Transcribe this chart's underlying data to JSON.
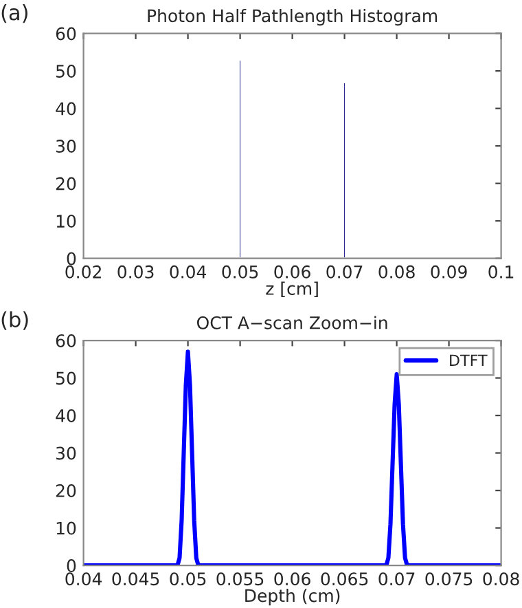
{
  "chart_data": [
    {
      "type": "bar",
      "title": "Photon Half Pathlength Histogram",
      "xlabel": "z [cm]",
      "annotations": [
        "(a)"
      ],
      "x": [
        0.05,
        0.07
      ],
      "series": [
        {
          "color": "#000080",
          "values": [
            53,
            47
          ]
        }
      ],
      "xlim": [
        0.02,
        0.1
      ],
      "xticks": [
        0.02,
        0.03,
        0.04,
        0.05,
        0.06,
        0.07,
        0.08,
        0.09,
        0.1
      ],
      "ylim": [
        0,
        60
      ],
      "yticks": [
        0,
        10,
        20,
        30,
        40,
        50,
        60
      ],
      "grid": false,
      "legend": false
    },
    {
      "type": "line",
      "title": "OCT A−scan Zoom−in",
      "xlabel": "Depth (cm)",
      "annotations": [
        "(b)"
      ],
      "series": [
        {
          "name": "DTFT",
          "color": "#0000ff",
          "x": [
            0.04,
            0.049,
            0.0492,
            0.0494,
            0.0496,
            0.0498,
            0.05,
            0.0502,
            0.0504,
            0.0506,
            0.0508,
            0.051,
            0.069,
            0.0692,
            0.0694,
            0.0696,
            0.0698,
            0.07,
            0.0702,
            0.0704,
            0.0706,
            0.0708,
            0.071,
            0.08
          ],
          "values": [
            0,
            0,
            2,
            12,
            30,
            48,
            57,
            48,
            30,
            12,
            2,
            0,
            0,
            2,
            11,
            27,
            43,
            51,
            43,
            27,
            11,
            2,
            0,
            0
          ]
        }
      ],
      "xlim": [
        0.04,
        0.08
      ],
      "xticks": [
        0.04,
        0.045,
        0.05,
        0.055,
        0.06,
        0.065,
        0.07,
        0.075,
        0.08
      ],
      "ylim": [
        0,
        60
      ],
      "yticks": [
        0,
        10,
        20,
        30,
        40,
        50,
        60
      ],
      "grid": false,
      "legend": "top right",
      "line_style": "solid",
      "marker": "none"
    }
  ]
}
